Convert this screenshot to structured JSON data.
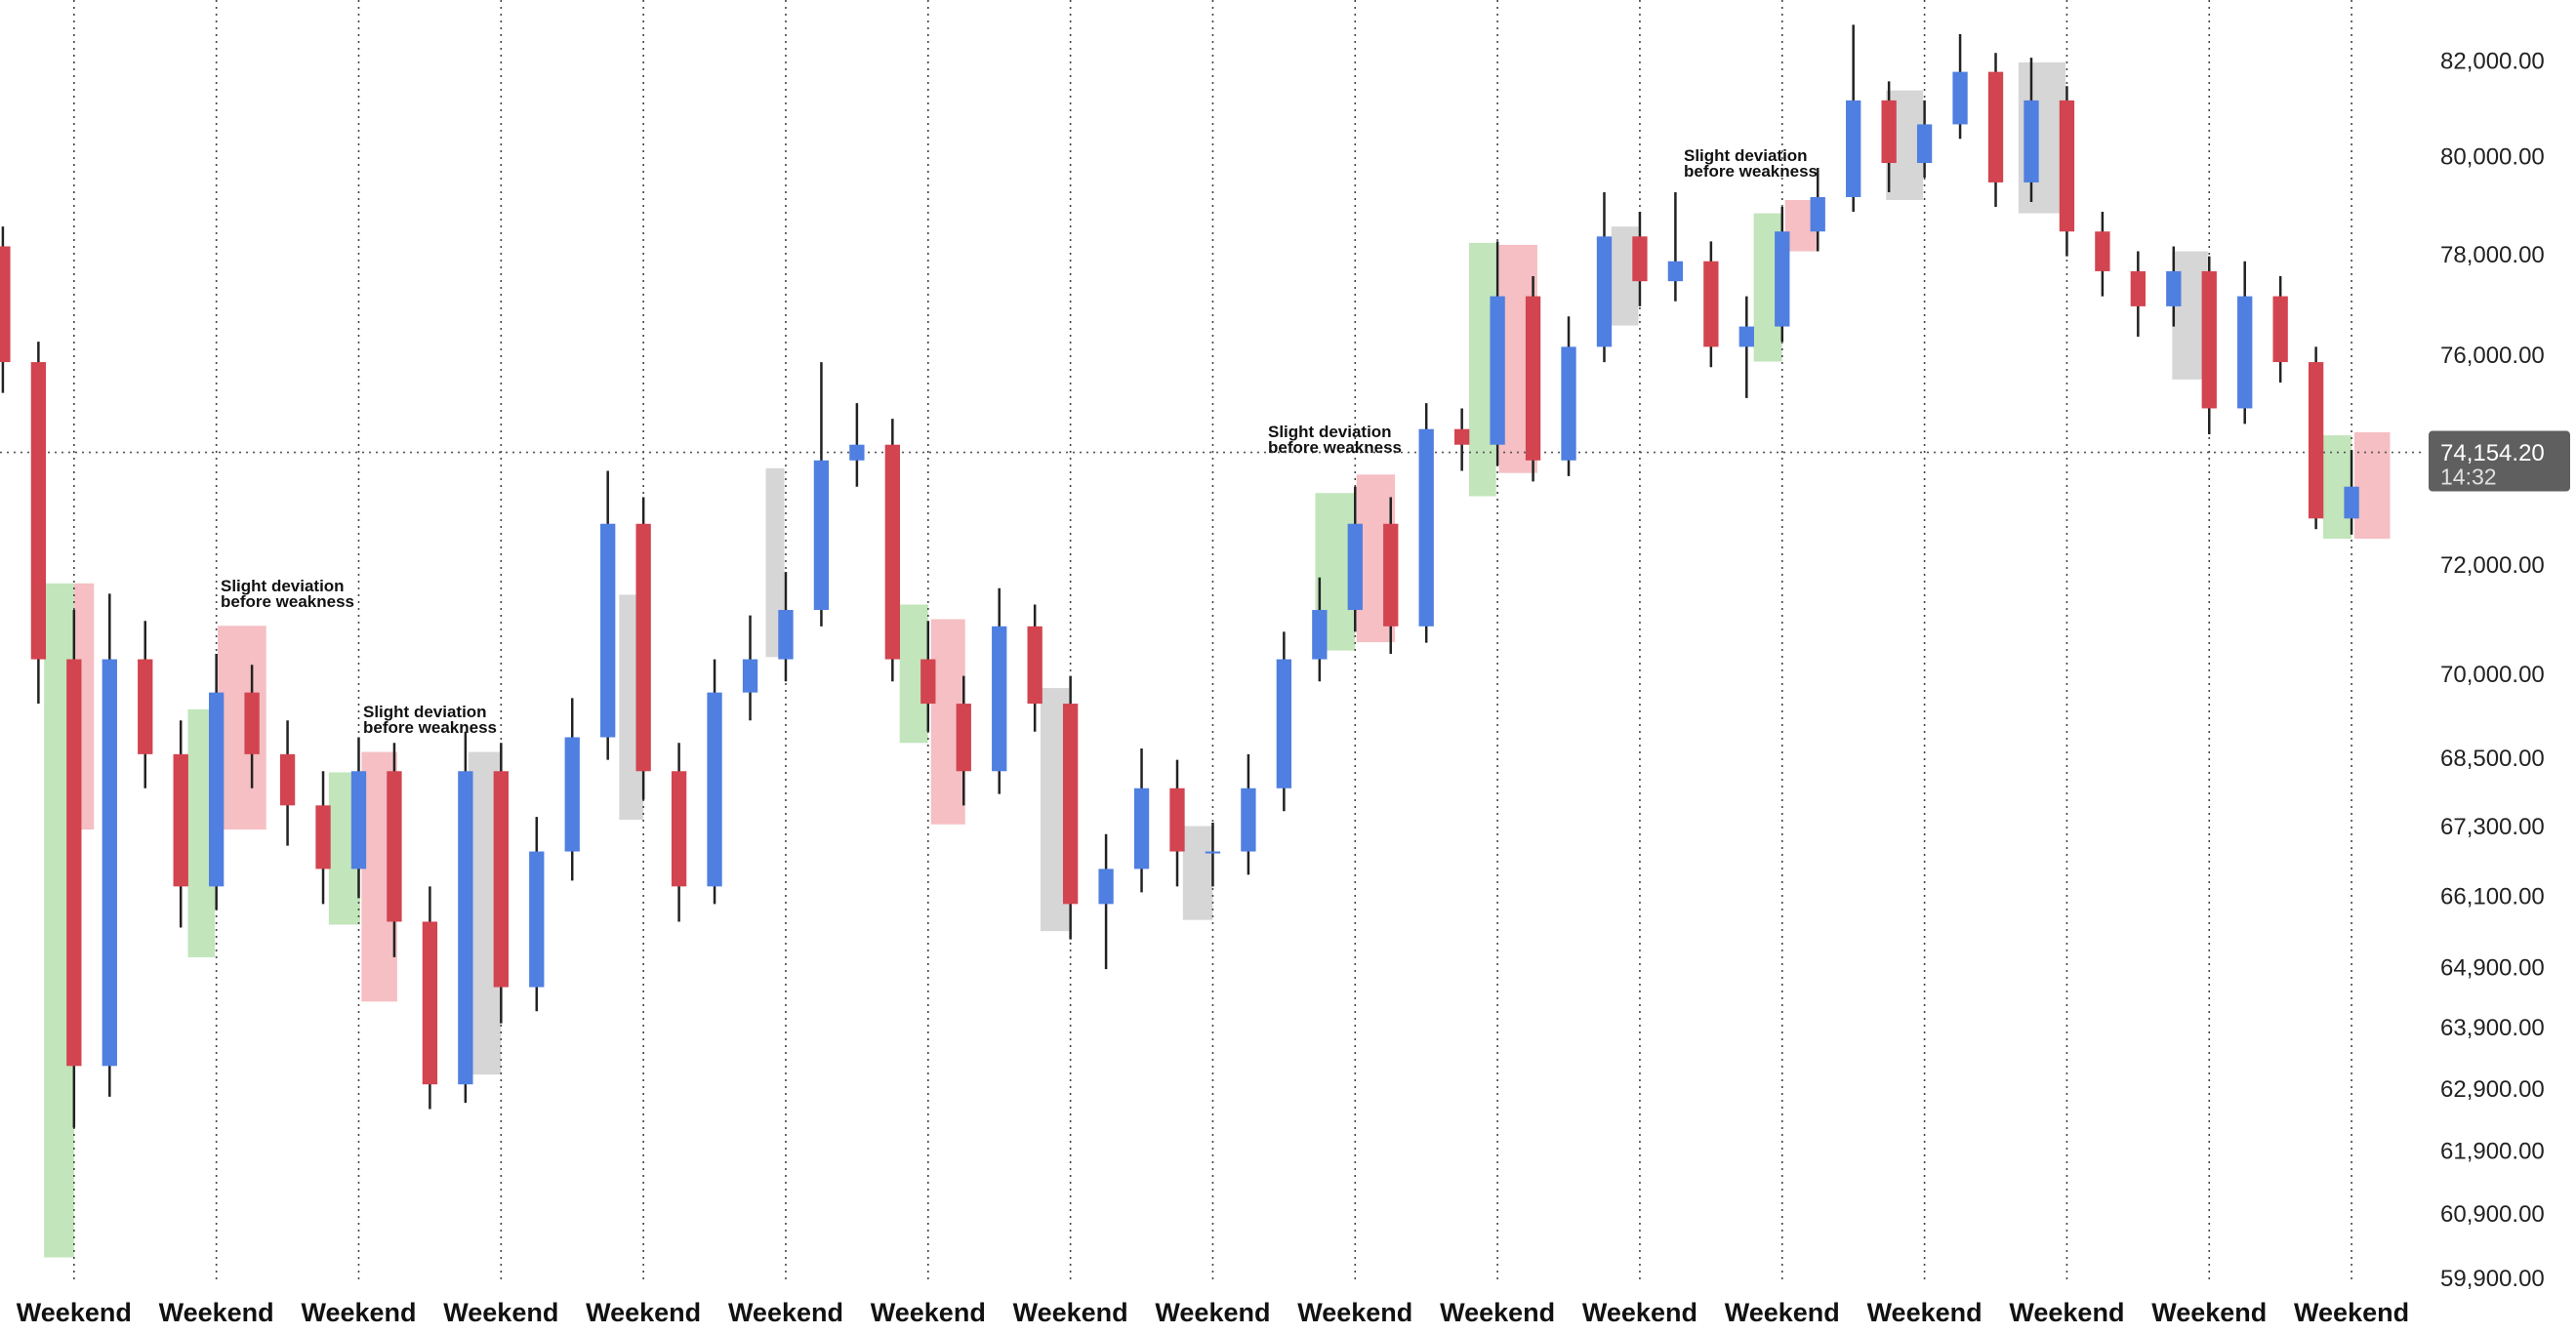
{
  "chart_data": {
    "type": "candlestick",
    "log_scale": true,
    "xlim": [
      -0.52,
      16.5
    ],
    "xticks": [
      {
        "value": 0,
        "label": "Weekend"
      },
      {
        "value": 1,
        "label": "Weekend"
      },
      {
        "value": 2,
        "label": "Weekend"
      },
      {
        "value": 3,
        "label": "Weekend"
      },
      {
        "value": 4,
        "label": "Weekend"
      },
      {
        "value": 5,
        "label": "Weekend"
      },
      {
        "value": 6,
        "label": "Weekend"
      },
      {
        "value": 7,
        "label": "Weekend"
      },
      {
        "value": 8,
        "label": "Weekend"
      },
      {
        "value": 9,
        "label": "Weekend"
      },
      {
        "value": 10,
        "label": "Weekend"
      },
      {
        "value": 11,
        "label": "Weekend"
      },
      {
        "value": 12,
        "label": "Weekend"
      },
      {
        "value": 13,
        "label": "Weekend"
      },
      {
        "value": 14,
        "label": "Weekend"
      },
      {
        "value": 15,
        "label": "Weekend"
      },
      {
        "value": 16,
        "label": "Weekend"
      }
    ],
    "ylim": [
      59880,
      83330
    ],
    "yticks": [
      {
        "value": 82000,
        "label": "82,000.00"
      },
      {
        "value": 80000,
        "label": "80,000.00"
      },
      {
        "value": 78000,
        "label": "78,000.00"
      },
      {
        "value": 76000,
        "label": "76,000.00"
      },
      {
        "value": 72000,
        "label": "72,000.00"
      },
      {
        "value": 70000,
        "label": "70,000.00"
      },
      {
        "value": 68500,
        "label": "68,500.00"
      },
      {
        "value": 67300,
        "label": "67,300.00"
      },
      {
        "value": 66100,
        "label": "66,100.00"
      },
      {
        "value": 64900,
        "label": "64,900.00"
      },
      {
        "value": 63900,
        "label": "63,900.00"
      },
      {
        "value": 62900,
        "label": "62,900.00"
      },
      {
        "value": 61900,
        "label": "61,900.00"
      },
      {
        "value": 60900,
        "label": "60,900.00"
      },
      {
        "value": 59900,
        "label": "59,900.00"
      }
    ],
    "up_color": "#4f7fe0",
    "down_color": "#d24450",
    "wick_color": "#222222",
    "x": [
      -0.5,
      -0.25,
      0,
      0.25,
      0.5,
      0.75,
      1,
      1.25,
      1.5,
      1.75,
      2,
      2.25,
      2.5,
      2.75,
      3,
      3.25,
      3.5,
      3.75,
      4,
      4.25,
      4.5,
      4.75,
      5,
      5.25,
      5.5,
      5.75,
      6,
      6.25,
      6.5,
      6.75,
      7,
      7.25,
      7.5,
      7.75,
      8,
      8.25,
      8.5,
      8.75,
      9,
      9.25,
      9.5,
      9.75,
      10,
      10.25,
      10.5,
      10.75,
      11,
      11.25,
      11.5,
      11.75,
      12,
      12.25,
      12.5,
      12.75,
      13,
      13.25,
      13.5,
      13.75,
      14,
      14.25,
      14.5,
      14.75,
      15,
      15.25,
      15.5,
      15.75,
      16
    ],
    "open": [
      78200,
      75900,
      70300,
      63300,
      70300,
      68600,
      66300,
      69700,
      68600,
      67700,
      66600,
      68300,
      65700,
      63000,
      68300,
      64600,
      66900,
      68900,
      72800,
      68300,
      66300,
      69700,
      70300,
      71200,
      74000,
      74300,
      70300,
      69500,
      68300,
      70900,
      69500,
      66000,
      66600,
      68000,
      66900,
      66900,
      68000,
      70300,
      71200,
      72800,
      70900,
      74600,
      74300,
      77200,
      74000,
      76200,
      78400,
      77500,
      77900,
      76200,
      76600,
      78500,
      79200,
      81200,
      79900,
      80700,
      81800,
      79500,
      81200,
      78500,
      77700,
      77000,
      77700,
      75000,
      77200,
      75900,
      72900
    ],
    "high": [
      78600,
      76300,
      71200,
      71500,
      71000,
      69200,
      70400,
      70200,
      69200,
      68300,
      68900,
      68800,
      66300,
      69000,
      68800,
      67500,
      69600,
      73800,
      73300,
      68800,
      70300,
      71100,
      71900,
      75900,
      75100,
      74800,
      71000,
      70000,
      71600,
      71300,
      70000,
      67200,
      68700,
      68500,
      67400,
      68600,
      70800,
      71800,
      73500,
      73300,
      75100,
      75000,
      78300,
      77600,
      76800,
      79300,
      78900,
      79300,
      78300,
      77200,
      79000,
      79800,
      82800,
      81600,
      81200,
      82600,
      82200,
      82100,
      81500,
      78900,
      78100,
      78200,
      78000,
      77900,
      77600,
      76200,
      74200
    ],
    "low": [
      75300,
      69500,
      62300,
      62800,
      68000,
      65600,
      65900,
      68000,
      67000,
      66000,
      66100,
      65100,
      62600,
      62700,
      64000,
      64200,
      66400,
      68500,
      67800,
      65700,
      66000,
      69200,
      69900,
      70900,
      73500,
      69900,
      69000,
      67700,
      67900,
      69000,
      65400,
      64900,
      66200,
      66300,
      66300,
      66500,
      67600,
      69900,
      70800,
      70400,
      70600,
      73800,
      73900,
      73600,
      73700,
      75900,
      77000,
      77100,
      75800,
      75200,
      76300,
      78100,
      78900,
      79300,
      79600,
      80400,
      79000,
      79100,
      78000,
      77200,
      76400,
      76600,
      74500,
      74700,
      75500,
      72700,
      72600
    ],
    "close": [
      75900,
      70300,
      63300,
      70300,
      68600,
      66300,
      69700,
      68600,
      67700,
      66600,
      68300,
      65700,
      63000,
      68300,
      64600,
      66900,
      68900,
      72800,
      68300,
      66300,
      69700,
      70300,
      71200,
      74000,
      74300,
      70300,
      69500,
      68300,
      70900,
      69500,
      66000,
      66600,
      68000,
      66900,
      66900,
      68000,
      70300,
      71200,
      72800,
      70900,
      74600,
      74300,
      77200,
      74000,
      76200,
      78400,
      77500,
      77900,
      76200,
      76600,
      78500,
      79200,
      81200,
      79900,
      80700,
      81800,
      79500,
      81200,
      78500,
      77700,
      77000,
      77700,
      75000,
      77200,
      75900,
      72900,
      73500
    ],
    "zone_colors": {
      "green": "#8fcf84",
      "red": "#ec8a92",
      "gray": "#b4b4b4"
    },
    "zones": [
      {
        "kind": "green",
        "x0": -0.21,
        "x1": 0,
        "top": 71690,
        "bottom": 60250
      },
      {
        "kind": "red",
        "x0": 0,
        "x1": 0.14,
        "top": 71690,
        "bottom": 67280
      },
      {
        "kind": "green",
        "x0": 0.8,
        "x1": 0.99,
        "top": 69400,
        "bottom": 65100
      },
      {
        "kind": "red",
        "x0": 1.01,
        "x1": 1.35,
        "top": 70910,
        "bottom": 67280
      },
      {
        "kind": "green",
        "x0": 1.79,
        "x1": 2.01,
        "top": 68280,
        "bottom": 65650
      },
      {
        "kind": "red",
        "x0": 2.02,
        "x1": 2.27,
        "top": 68640,
        "bottom": 64360
      },
      {
        "kind": "gray",
        "x0": 2.77,
        "x1": 3.0,
        "top": 68640,
        "bottom": 63160
      },
      {
        "kind": "gray",
        "x0": 3.83,
        "x1": 4.0,
        "top": 71480,
        "bottom": 67450
      },
      {
        "kind": "gray",
        "x0": 4.86,
        "x1": 4.99,
        "top": 73850,
        "bottom": 70340
      },
      {
        "kind": "green",
        "x0": 5.8,
        "x1": 6.0,
        "top": 71300,
        "bottom": 68800
      },
      {
        "kind": "red",
        "x0": 6.02,
        "x1": 6.26,
        "top": 71030,
        "bottom": 67370
      },
      {
        "kind": "gray",
        "x0": 6.79,
        "x1": 6.99,
        "top": 69780,
        "bottom": 65540
      },
      {
        "kind": "gray",
        "x0": 7.79,
        "x1": 8.0,
        "top": 67340,
        "bottom": 65730
      },
      {
        "kind": "green",
        "x0": 8.72,
        "x1": 9.0,
        "top": 73380,
        "bottom": 70460
      },
      {
        "kind": "red",
        "x0": 9.01,
        "x1": 9.28,
        "top": 73730,
        "bottom": 70610
      },
      {
        "kind": "green",
        "x0": 9.8,
        "x1": 9.99,
        "top": 78270,
        "bottom": 73320
      },
      {
        "kind": "red",
        "x0": 10.01,
        "x1": 10.28,
        "top": 78230,
        "bottom": 73760
      },
      {
        "kind": "gray",
        "x0": 10.8,
        "x1": 10.99,
        "top": 78600,
        "bottom": 76620
      },
      {
        "kind": "green",
        "x0": 11.8,
        "x1": 12.0,
        "top": 78870,
        "bottom": 75910
      },
      {
        "kind": "red",
        "x0": 12.02,
        "x1": 12.25,
        "top": 79140,
        "bottom": 78100
      },
      {
        "kind": "gray",
        "x0": 12.73,
        "x1": 12.99,
        "top": 81410,
        "bottom": 79140
      },
      {
        "kind": "gray",
        "x0": 13.66,
        "x1": 13.99,
        "top": 82000,
        "bottom": 78870
      },
      {
        "kind": "gray",
        "x0": 14.74,
        "x1": 14.99,
        "top": 78100,
        "bottom": 75560
      },
      {
        "kind": "green",
        "x0": 15.8,
        "x1": 16.0,
        "top": 74480,
        "bottom": 72520
      },
      {
        "kind": "red",
        "x0": 16.02,
        "x1": 16.27,
        "top": 74540,
        "bottom": 72520
      }
    ],
    "annotations": [
      {
        "lines": [
          "Slight deviation",
          "before weakness"
        ]
      },
      {
        "lines": [
          "Slight deviation",
          "before weakness"
        ]
      },
      {
        "lines": [
          "Slight deviation",
          "before weakness"
        ]
      },
      {
        "lines": [
          "Slight deviation",
          "before weakness"
        ]
      }
    ],
    "last_price": {
      "value": 74154.2,
      "label": "74,154.20"
    },
    "countdown": "14:32"
  }
}
